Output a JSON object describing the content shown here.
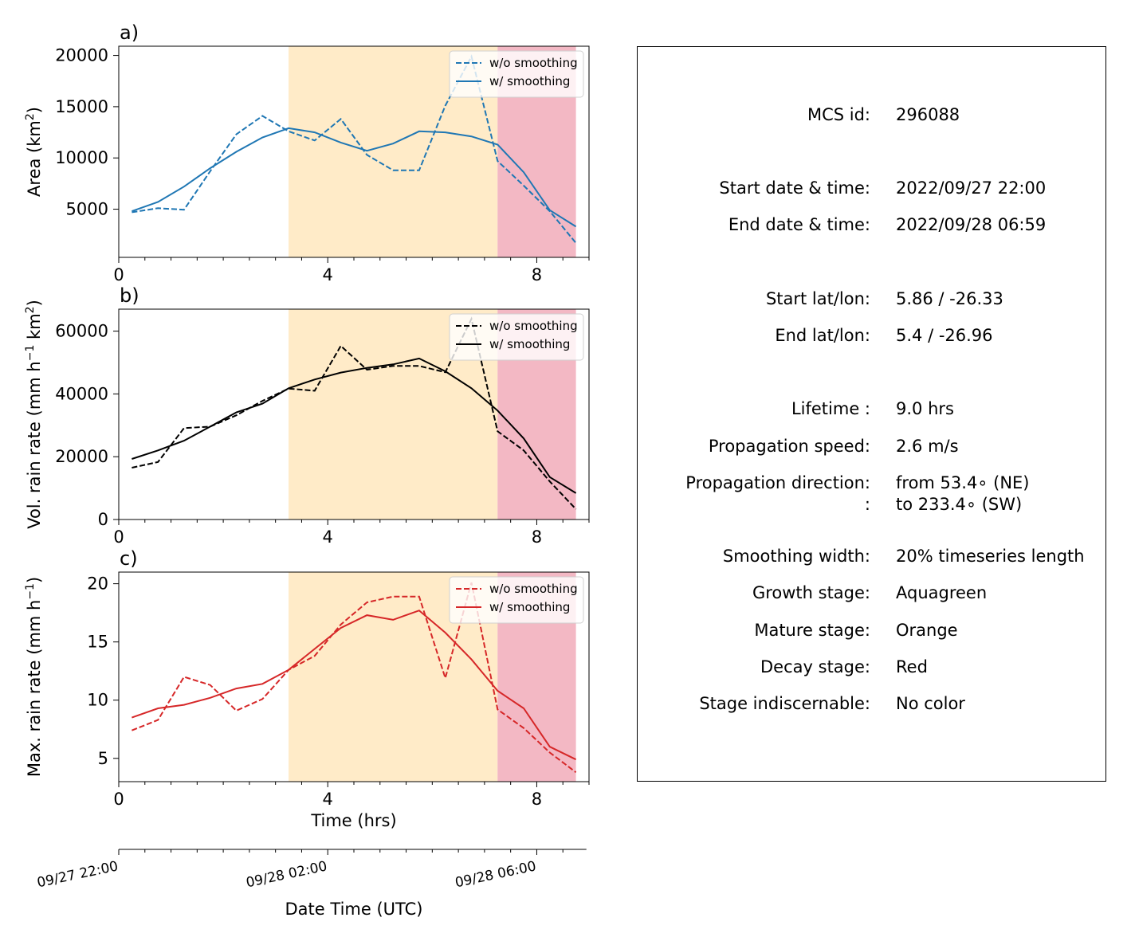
{
  "chart_data": [
    {
      "type": "line",
      "panel_label": "a)",
      "ylabel_parts": [
        "Area  (km",
        "2",
        ")"
      ],
      "xlabel": "",
      "xlim": [
        0,
        9.0
      ],
      "ylim": [
        300,
        20900
      ],
      "yticks": [
        5000,
        10000,
        15000,
        20000
      ],
      "ytick_labels": [
        "5000",
        "10000",
        "15000",
        "20000"
      ],
      "xticks": [
        0,
        4,
        8
      ],
      "xtick_labels": [
        "0",
        "4",
        "8"
      ],
      "color": "#1f77b4",
      "stages": [
        {
          "name": "Mature",
          "x0": 3.25,
          "x1": 7.25,
          "color": "#ffebc8"
        },
        {
          "name": "Decay",
          "x0": 7.25,
          "x1": 8.75,
          "color": "#f3b8c4"
        }
      ],
      "legend_position": "upper right",
      "x": [
        0.25,
        0.75,
        1.25,
        1.75,
        2.25,
        2.75,
        3.25,
        3.75,
        4.25,
        4.75,
        5.25,
        5.75,
        6.25,
        6.75,
        7.25,
        7.75,
        8.25,
        8.75
      ],
      "series": [
        {
          "name": "w/o smoothing",
          "style": "dashed",
          "values": [
            4700,
            5100,
            4950,
            8700,
            12300,
            14100,
            12600,
            11700,
            13800,
            10300,
            8800,
            8800,
            15100,
            19900,
            9700,
            7300,
            4800,
            1700
          ]
        },
        {
          "name": "w/ smoothing",
          "style": "solid",
          "values": [
            4800,
            5700,
            7200,
            9000,
            10600,
            12000,
            12900,
            12500,
            11500,
            10700,
            11400,
            12600,
            12500,
            12100,
            11300,
            8600,
            4900,
            3300
          ]
        }
      ]
    },
    {
      "type": "line",
      "panel_label": "b)",
      "ylabel_parts": [
        "Vol. rain rate (mm h",
        "−1",
        " km",
        "2",
        ")"
      ],
      "xlabel": "",
      "xlim": [
        0,
        9.0
      ],
      "ylim": [
        0,
        67000
      ],
      "yticks": [
        0,
        20000,
        40000,
        60000
      ],
      "ytick_labels": [
        "0",
        "20000",
        "40000",
        "60000"
      ],
      "xticks": [
        0,
        4,
        8
      ],
      "xtick_labels": [
        "0",
        "4",
        "8"
      ],
      "color": "#000000",
      "stages": [
        {
          "name": "Mature",
          "x0": 3.25,
          "x1": 7.25,
          "color": "#ffebc8"
        },
        {
          "name": "Decay",
          "x0": 7.25,
          "x1": 8.75,
          "color": "#f3b8c4"
        }
      ],
      "legend_position": "upper right",
      "x": [
        0.25,
        0.75,
        1.25,
        1.75,
        2.25,
        2.75,
        3.25,
        3.75,
        4.25,
        4.75,
        5.25,
        5.75,
        6.25,
        6.75,
        7.25,
        7.75,
        8.25,
        8.75
      ],
      "series": [
        {
          "name": "w/o smoothing",
          "style": "dashed",
          "values": [
            16500,
            18300,
            29100,
            29600,
            33200,
            37800,
            41700,
            41000,
            55300,
            47700,
            48900,
            48900,
            46900,
            63900,
            28100,
            22000,
            12100,
            3300
          ]
        },
        {
          "name": "w/ smoothing",
          "style": "solid",
          "values": [
            19300,
            22000,
            25100,
            29600,
            34100,
            36900,
            41800,
            44600,
            46800,
            48300,
            49400,
            51300,
            47200,
            41800,
            34700,
            25800,
            13500,
            8400
          ]
        }
      ]
    },
    {
      "type": "line",
      "panel_label": "c)",
      "ylabel_parts": [
        "Max. rain rate  (mm h",
        "−1",
        ")"
      ],
      "xlabel": "Time (hrs)",
      "xlim": [
        0,
        9.0
      ],
      "ylim": [
        3,
        21
      ],
      "yticks": [
        5,
        10,
        15,
        20
      ],
      "ytick_labels": [
        "5",
        "10",
        "15",
        "20"
      ],
      "xticks": [
        0,
        4,
        8
      ],
      "xtick_labels": [
        "0",
        "4",
        "8"
      ],
      "color": "#d62728",
      "stages": [
        {
          "name": "Mature",
          "x0": 3.25,
          "x1": 7.25,
          "color": "#ffebc8"
        },
        {
          "name": "Decay",
          "x0": 7.25,
          "x1": 8.75,
          "color": "#f3b8c4"
        }
      ],
      "legend_position": "upper right",
      "x": [
        0.25,
        0.75,
        1.25,
        1.75,
        2.25,
        2.75,
        3.25,
        3.75,
        4.25,
        4.75,
        5.25,
        5.75,
        6.25,
        6.75,
        7.25,
        7.75,
        8.25,
        8.75
      ],
      "series": [
        {
          "name": "w/o smoothing",
          "style": "dashed",
          "values": [
            7.4,
            8.3,
            12.0,
            11.3,
            9.1,
            10.1,
            12.6,
            13.8,
            16.5,
            18.4,
            18.9,
            18.9,
            11.9,
            20.1,
            9.2,
            7.6,
            5.5,
            3.8
          ]
        },
        {
          "name": "w/ smoothing",
          "style": "solid",
          "values": [
            8.5,
            9.3,
            9.6,
            10.2,
            11.0,
            11.4,
            12.6,
            14.4,
            16.2,
            17.3,
            16.9,
            17.7,
            15.8,
            13.5,
            10.8,
            9.3,
            6.0,
            4.9
          ]
        }
      ]
    }
  ],
  "date_axis": {
    "label": "Date Time (UTC)",
    "ticks": [
      {
        "hours": 0,
        "label": "09/27 22:00"
      },
      {
        "hours": 4,
        "label": "09/28 02:00"
      },
      {
        "hours": 8,
        "label": "09/28 06:00"
      }
    ]
  },
  "info": [
    {
      "label": "MCS id:",
      "value": "296088"
    },
    {
      "label": "Start date & time:",
      "value": "2022/09/27 22:00"
    },
    {
      "label": "End date & time:",
      "value": "2022/09/28 06:59"
    },
    {
      "label": "Start lat/lon:",
      "value": "5.86 / -26.33"
    },
    {
      "label": "End lat/lon:",
      "value": "5.4 / -26.96"
    },
    {
      "label": "Lifetime :",
      "value": "9.0 hrs"
    },
    {
      "label": "Propagation speed:",
      "value": "2.6 m/s"
    },
    {
      "label": "Propagation direction:",
      "value": "from  53.4∘ (NE)"
    },
    {
      "label": ":",
      "value": "to   233.4∘ (SW)"
    },
    {
      "label": "Smoothing width:",
      "value": "20% timeseries length"
    },
    {
      "label": "Growth stage:",
      "value": "Aquagreen"
    },
    {
      "label": "Mature stage:",
      "value": "Orange"
    },
    {
      "label": "Decay stage:",
      "value": "Red"
    },
    {
      "label": "Stage indiscernable:",
      "value": "No color"
    }
  ]
}
